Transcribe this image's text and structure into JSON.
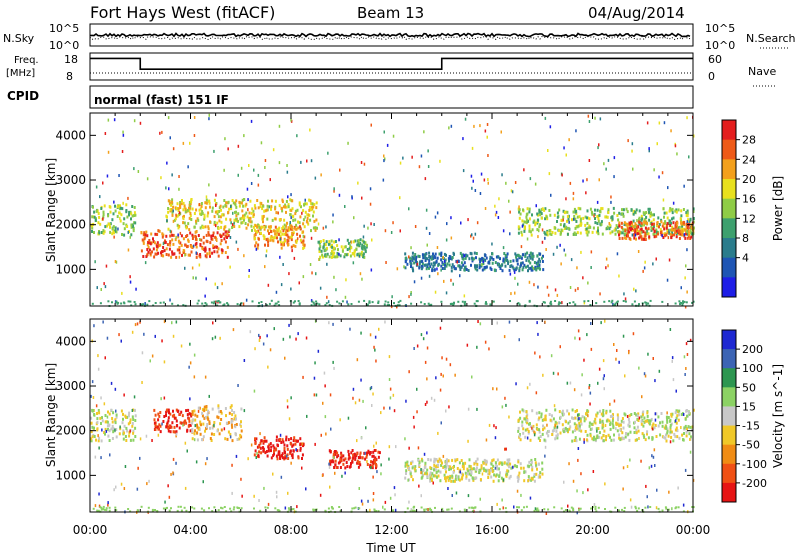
{
  "header": {
    "station": "Fort Hays West (fitACF)",
    "beam": "Beam 13",
    "date": "04/Aug/2014"
  },
  "noise_panel": {
    "left_label": "N.Sky",
    "right_label": "N.Search",
    "left_ticks": [
      "10^5",
      "10^0"
    ],
    "right_ticks": [
      "10^5",
      "10^0"
    ]
  },
  "freq_panel": {
    "left_label_1": "Freq.",
    "left_label_2": "[MHz]",
    "right_label": "Nave",
    "left_ticks": [
      "18",
      "8"
    ],
    "right_ticks": [
      "60",
      "0"
    ]
  },
  "cpid": {
    "label": "CPID",
    "value": "normal (fast) 151 IF"
  },
  "chart_data": [
    {
      "type": "line",
      "title": "Freq. / Nave",
      "x_label": "Time UT",
      "series": [
        {
          "name": "Freq.",
          "x": [
            "00:00",
            "02:00",
            "02:00",
            "14:00",
            "14:00",
            "24:00"
          ],
          "y": [
            16,
            16,
            12,
            12,
            16,
            16
          ]
        },
        {
          "name": "Nave",
          "x": [
            "00:00",
            "24:00"
          ],
          "y": [
            8,
            8
          ]
        }
      ]
    },
    {
      "type": "heatmap",
      "title": "Power",
      "ylabel": "Slant Range [km]",
      "xlabel": "Time UT",
      "ylim": [
        180,
        4500
      ],
      "x_ticks": [
        "00:00",
        "04:00",
        "08:00",
        "12:00",
        "16:00",
        "20:00",
        "00:00"
      ],
      "y_ticks": [
        "1000",
        "2000",
        "3000",
        "4000"
      ],
      "colorbar": {
        "label": "Power [dB]",
        "tick_labels": [
          "4",
          "8",
          "12",
          "16",
          "20",
          "24",
          "28"
        ],
        "colors": [
          "#1e1ee6",
          "#1e55b4",
          "#2a7c8c",
          "#3da06e",
          "#8fcc46",
          "#e8e01e",
          "#f3a01c",
          "#ee5a18",
          "#e41e1e"
        ]
      },
      "echo_regions": [
        {
          "t0": 0.0,
          "t1": 1.8,
          "r0": 1800,
          "r1": 2500,
          "level": 4
        },
        {
          "t0": 2.0,
          "t1": 5.5,
          "r0": 1300,
          "r1": 1900,
          "level": 7
        },
        {
          "t0": 3.0,
          "t1": 9.0,
          "r0": 1900,
          "r1": 2600,
          "level": 5
        },
        {
          "t0": 6.5,
          "t1": 8.5,
          "r0": 1500,
          "r1": 2000,
          "level": 6
        },
        {
          "t0": 9.0,
          "t1": 11.0,
          "r0": 1300,
          "r1": 1700,
          "level": 4
        },
        {
          "t0": 12.5,
          "t1": 18.0,
          "r0": 1000,
          "r1": 1400,
          "level": 2
        },
        {
          "t0": 17.0,
          "t1": 24.0,
          "r0": 1800,
          "r1": 2400,
          "level": 4
        },
        {
          "t0": 21.0,
          "t1": 24.0,
          "r0": 1700,
          "r1": 2100,
          "level": 7
        }
      ]
    },
    {
      "type": "heatmap",
      "title": "Velocity",
      "ylabel": "Slant Range [km]",
      "xlabel": "Time UT",
      "ylim": [
        180,
        4500
      ],
      "x_ticks": [
        "00:00",
        "04:00",
        "08:00",
        "12:00",
        "16:00",
        "20:00",
        "00:00"
      ],
      "y_ticks": [
        "1000",
        "2000",
        "3000",
        "4000"
      ],
      "colorbar": {
        "label": "Velocity [m s^-1]",
        "tick_labels": [
          "200",
          "100",
          "50",
          "15",
          "-15",
          "-50",
          "-100",
          "-200"
        ],
        "colors": [
          "#1e28d2",
          "#3c64b4",
          "#2d9650",
          "#8cd264",
          "#c8c8c8",
          "#f0c828",
          "#f08c14",
          "#f05014",
          "#e61414"
        ]
      },
      "echo_regions": [
        {
          "t0": 0.0,
          "t1": 1.8,
          "r0": 1800,
          "r1": 2500,
          "level": 4
        },
        {
          "t0": 2.5,
          "t1": 4.0,
          "r0": 2000,
          "r1": 2500,
          "level": 8
        },
        {
          "t0": 4.0,
          "t1": 6.0,
          "r0": 1800,
          "r1": 2600,
          "level": 5
        },
        {
          "t0": 6.5,
          "t1": 8.5,
          "r0": 1400,
          "r1": 1900,
          "level": 8
        },
        {
          "t0": 9.5,
          "t1": 11.5,
          "r0": 1200,
          "r1": 1600,
          "level": 8
        },
        {
          "t0": 12.5,
          "t1": 18.0,
          "r0": 900,
          "r1": 1400,
          "level": 4
        },
        {
          "t0": 17.0,
          "t1": 24.0,
          "r0": 1800,
          "r1": 2500,
          "level": 4
        }
      ]
    }
  ],
  "time_axis": {
    "title": "Time UT",
    "ticks": [
      "00:00",
      "04:00",
      "08:00",
      "12:00",
      "16:00",
      "20:00",
      "00:00"
    ]
  }
}
